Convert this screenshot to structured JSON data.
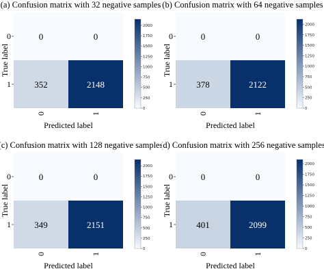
{
  "colors": {
    "low": "#f7fbff",
    "high": "#08306b",
    "text_dark": "#000000",
    "text_light": "#ffffff"
  },
  "chart_data": [
    {
      "type": "heatmap",
      "title": "(a) Confusion matrix with 32 negative samples",
      "xlabel": "Predicted label",
      "ylabel": "True label",
      "x_categories": [
        "0",
        "1"
      ],
      "y_categories": [
        "0",
        "1"
      ],
      "values": [
        [
          0,
          0
        ],
        [
          352,
          2148
        ]
      ],
      "colorbar_range": [
        0,
        2148
      ],
      "colorbar_ticks": [
        0,
        250,
        500,
        750,
        1000,
        1250,
        1500,
        1750,
        2000
      ]
    },
    {
      "type": "heatmap",
      "title": "(b) Confusion matrix with 64 negative samples",
      "xlabel": "Predicted label",
      "ylabel": "True label",
      "x_categories": [
        "0",
        "1"
      ],
      "y_categories": [
        "0",
        "1"
      ],
      "values": [
        [
          0,
          0
        ],
        [
          378,
          2122
        ]
      ],
      "colorbar_range": [
        0,
        2122
      ],
      "colorbar_ticks": [
        0,
        250,
        500,
        750,
        1000,
        1250,
        1500,
        1750,
        2000
      ]
    },
    {
      "type": "heatmap",
      "title": "(c) Confusion matrix with 128 negative samples",
      "xlabel": "Predicted label",
      "ylabel": "True label",
      "x_categories": [
        "0",
        "1"
      ],
      "y_categories": [
        "0",
        "1"
      ],
      "values": [
        [
          0,
          0
        ],
        [
          349,
          2151
        ]
      ],
      "colorbar_range": [
        0,
        2151
      ],
      "colorbar_ticks": [
        0,
        250,
        500,
        750,
        1000,
        1250,
        1500,
        1750,
        2000
      ]
    },
    {
      "type": "heatmap",
      "title": "(d) Confusion matrix with 256 negative samples",
      "xlabel": "Predicted label",
      "ylabel": "True label",
      "x_categories": [
        "0",
        "1"
      ],
      "y_categories": [
        "0",
        "1"
      ],
      "values": [
        [
          0,
          0
        ],
        [
          401,
          2099
        ]
      ],
      "colorbar_range": [
        0,
        2099
      ],
      "colorbar_ticks": [
        0,
        250,
        500,
        750,
        1000,
        1250,
        1500,
        1750,
        2000
      ]
    }
  ]
}
